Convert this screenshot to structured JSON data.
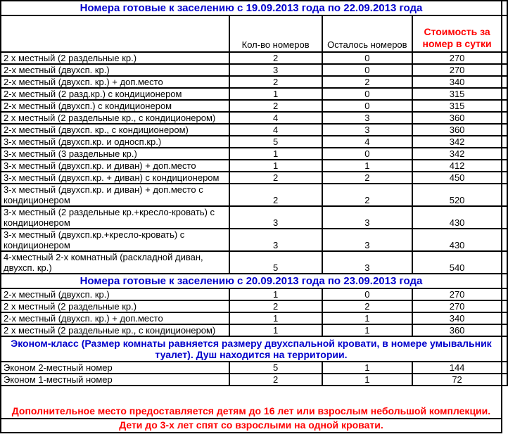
{
  "colors": {
    "title_blue": "#0000CC",
    "accent_red": "#FF0000",
    "border_black": "#000000",
    "background": "#FFFFFF"
  },
  "table": {
    "header": {
      "room_type": "",
      "count": "Кол-во номеров",
      "remaining": "Осталось номеров",
      "price": "Стоимость за номер в сутки"
    },
    "sections": [
      {
        "title": "Номера готовые к заселению с 19.09.2013 года по 22.09.2013 года",
        "rows": [
          {
            "name": "2 х местный (2 раздельные кр.)",
            "count": "2",
            "remaining": "0",
            "price": "270"
          },
          {
            "name": "2-х местный (двухсп. кр.)",
            "count": "3",
            "remaining": "0",
            "price": "270"
          },
          {
            "name": "2-х местный (двухсп. кр.) + доп.место",
            "count": "2",
            "remaining": "2",
            "price": "340"
          },
          {
            "name": "2-х местный (2 разд.кр.) с кондиционером",
            "count": "1",
            "remaining": "0",
            "price": "315"
          },
          {
            "name": "2-х местный (двухсп.) с кондиционером",
            "count": "2",
            "remaining": "0",
            "price": "315"
          },
          {
            "name": "2 х местный (2 раздельные кр., с кондиционером)",
            "count": "4",
            "remaining": "3",
            "price": "360"
          },
          {
            "name": "2-х местный (двухсп. кр., с кондиционером)",
            "count": "4",
            "remaining": "3",
            "price": "360"
          },
          {
            "name": "3-х местный (двухсп.кр. и односп.кр.)",
            "count": "5",
            "remaining": "4",
            "price": "342"
          },
          {
            "name": "3-х местный (3 раздельные кр.)",
            "count": "1",
            "remaining": "0",
            "price": "342"
          },
          {
            "name": "3-х местный (двухсп.кр. и диван) + доп.место",
            "count": "1",
            "remaining": "1",
            "price": "412"
          },
          {
            "name": "3-х местный (двухсп.кр. + диван) с кондиционером",
            "count": "2",
            "remaining": "2",
            "price": "450"
          },
          {
            "name": "3-х местный (двухсп.кр. и диван) + доп.место с кондиционером",
            "count": "2",
            "remaining": "2",
            "price": "520"
          },
          {
            "name": "3-х местный (2 раздельные кр.+кресло-кровать) с кондиционером",
            "count": "3",
            "remaining": "3",
            "price": "430"
          },
          {
            "name": "3-х местный (двухсп.кр.+кресло-кровать) с кондиционером",
            "count": "3",
            "remaining": "3",
            "price": "430"
          },
          {
            "name": "4-хместный 2-х комнатный (раскладной диван, двухсп. кр.)",
            "count": "5",
            "remaining": "3",
            "price": "540"
          }
        ]
      },
      {
        "title": "Номера готовые к заселению с 20.09.2013 года по 23.09.2013 года",
        "rows": [
          {
            "name": "2-х местный (двухсп. кр.)",
            "count": "1",
            "remaining": "0",
            "price": "270"
          },
          {
            "name": "2 х местный (2 раздельные кр.)",
            "count": "2",
            "remaining": "2",
            "price": "270"
          },
          {
            "name": "2-х местный (двухсп. кр.) + доп.место",
            "count": "1",
            "remaining": "1",
            "price": "340"
          },
          {
            "name": "2 х местный (2 раздельные кр., с кондиционером)",
            "count": "1",
            "remaining": "1",
            "price": "360"
          }
        ]
      },
      {
        "title": "Эконом-класс (Размер комнаты равняется размеру двухспальной кровати, в номере умывальник туалет). Душ находится на территории.",
        "rows": [
          {
            "name": "Эконом 2-местный номер",
            "count": "5",
            "remaining": "1",
            "price": "144"
          },
          {
            "name": "Эконом 1-местный номер",
            "count": "2",
            "remaining": "1",
            "price": "72"
          }
        ]
      }
    ],
    "footnotes": [
      "Дополнительное место предоставляется детям до 16 лет или взрослым небольшой комплекции.",
      "Дети до 3-х лет спят со взрослыми на одной кровати."
    ]
  }
}
